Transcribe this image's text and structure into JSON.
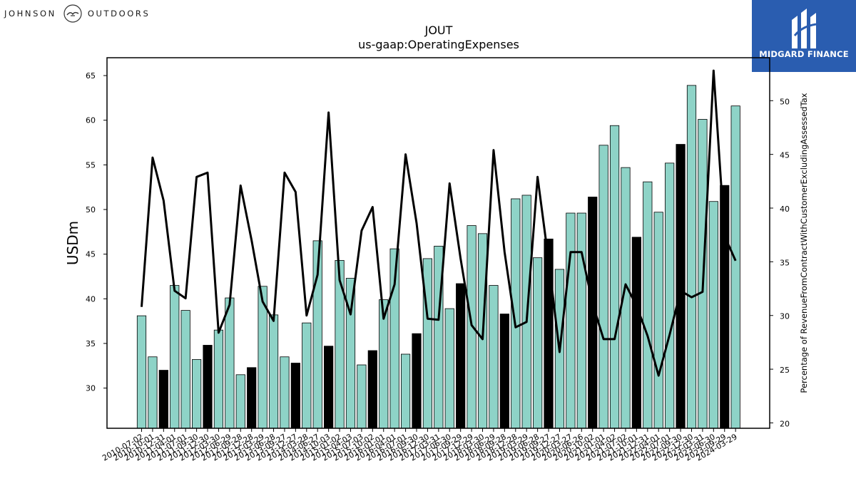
{
  "logos": {
    "left_text_1": "JOHNSON",
    "left_text_2": "OUTDOORS",
    "right_text": "MIDGARD FINANCE"
  },
  "colors": {
    "bar_default": "#8ed3c7",
    "bar_highlight": "#000000",
    "line": "#000000",
    "logo_bg": "#2a5db0"
  },
  "chart_data": {
    "type": "bar",
    "title": "JOUT",
    "subtitle": "us-gaap:OperatingExpenses",
    "ylabel": "USDm",
    "y2label": "Percentage of RevenueFromContractWithCustomerExcludingAssessedTax",
    "ylim": [
      25.5,
      67.0
    ],
    "y2lim": [
      19.5,
      54.0
    ],
    "yticks": [
      30,
      35,
      40,
      45,
      50,
      55,
      60,
      65
    ],
    "y2ticks": [
      20,
      25,
      30,
      35,
      40,
      45,
      50
    ],
    "grid": false,
    "x": [
      "2010-07-02",
      "2010-10-01",
      "2010-12-31",
      "2011-04-01",
      "2011-07-01",
      "2011-09-30",
      "2011-12-30",
      "2012-03-30",
      "2012-06-29",
      "2012-09-28",
      "2012-12-28",
      "2013-03-29",
      "2013-06-28",
      "2013-09-27",
      "2013-12-27",
      "2014-03-28",
      "2014-06-27",
      "2014-10-03",
      "2015-01-02",
      "2015-04-03",
      "2015-07-03",
      "2015-10-02",
      "2016-01-01",
      "2016-04-01",
      "2016-07-01",
      "2016-09-30",
      "2016-12-30",
      "2017-03-31",
      "2017-06-30",
      "2017-09-29",
      "2017-12-29",
      "2018-03-30",
      "2018-06-29",
      "2018-09-28",
      "2018-12-28",
      "2019-03-29",
      "2019-06-28",
      "2019-09-27",
      "2019-12-27",
      "2020-03-27",
      "2020-06-26",
      "2020-10-02",
      "2021-01-01",
      "2021-04-02",
      "2021-07-02",
      "2021-10-01",
      "2021-12-31",
      "2022-04-01",
      "2022-07-01",
      "2022-09-30",
      "2022-12-30",
      "2023-03-31",
      "2023-06-30",
      "2023-09-29",
      "2024-03-29"
    ],
    "series": [
      {
        "kind": "bar",
        "values": [
          38.1,
          33.5,
          32.0,
          41.5,
          38.7,
          33.2,
          34.8,
          36.5,
          40.1,
          31.5,
          32.3,
          41.4,
          38.2,
          33.5,
          32.8,
          37.3,
          46.5,
          34.7,
          44.3,
          42.3,
          32.6,
          34.2,
          39.9,
          45.6,
          33.8,
          36.1,
          44.5,
          45.9,
          38.9,
          41.7,
          48.2,
          47.3,
          41.5,
          38.3,
          51.2,
          51.6,
          44.6,
          46.7,
          43.3,
          49.6,
          49.6,
          51.4,
          57.2,
          59.4,
          54.7,
          46.9,
          53.1,
          49.7,
          55.2,
          57.3,
          63.9,
          60.1,
          50.9,
          52.7,
          61.6
        ],
        "highlighted": [
          false,
          false,
          true,
          false,
          false,
          false,
          true,
          false,
          false,
          false,
          true,
          false,
          false,
          false,
          true,
          false,
          false,
          true,
          false,
          false,
          false,
          true,
          false,
          false,
          false,
          true,
          false,
          false,
          false,
          true,
          false,
          false,
          false,
          true,
          false,
          false,
          false,
          true,
          false,
          false,
          false,
          true,
          false,
          false,
          false,
          true,
          false,
          false,
          false,
          true,
          false,
          false,
          false,
          true,
          false
        ]
      },
      {
        "kind": "line",
        "axis": "right",
        "values": [
          30.8,
          44.7,
          40.7,
          32.3,
          31.6,
          42.9,
          43.3,
          28.4,
          31.0,
          42.1,
          37.0,
          31.3,
          29.5,
          43.3,
          41.5,
          30.0,
          33.8,
          48.9,
          33.3,
          30.1,
          37.9,
          40.1,
          29.7,
          32.9,
          45.0,
          38.6,
          29.7,
          29.6,
          42.3,
          35.3,
          29.1,
          27.8,
          45.4,
          35.9,
          28.9,
          29.4,
          42.9,
          35.1,
          26.6,
          35.9,
          35.9,
          31.1,
          27.8,
          27.8,
          32.9,
          30.9,
          28.1,
          24.4,
          28.2,
          32.3,
          31.7,
          32.2,
          52.8,
          37.4,
          35.1
        ]
      }
    ]
  }
}
